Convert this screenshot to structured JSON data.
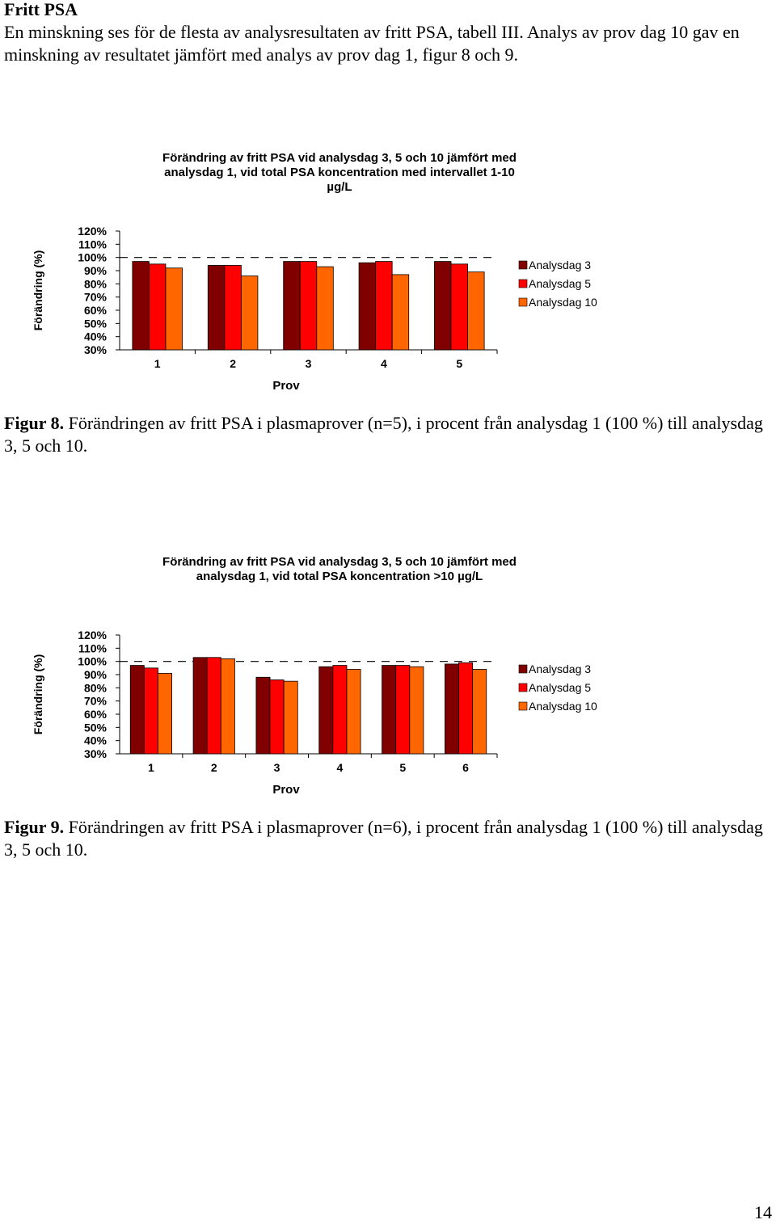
{
  "heading": "Fritt PSA",
  "paragraph": "En minskning ses för de flesta av analysresultaten av fritt PSA, tabell III. Analys av prov dag 10 gav en minskning av resultatet jämfört med analys av prov dag 1, figur 8 och 9.",
  "figure8": {
    "label": "Figur 8.",
    "caption": " Förändringen av fritt PSA i plasmaprover (n=5), i procent från analysdag 1 (100 %) till analysdag 3, 5 och 10."
  },
  "figure9": {
    "label": "Figur 9.",
    "caption": " Förändringen av fritt PSA i plasmaprover (n=6), i procent från analysdag 1 (100 %) till analysdag 3, 5 och 10."
  },
  "page_number": "14",
  "series_colors": [
    "#800000",
    "#ff0000",
    "#ff6600"
  ],
  "chart_data": [
    {
      "type": "bar",
      "title_lines": [
        "Förändring av fritt PSA vid analysdag 3, 5 och 10 jämfört med",
        "analysdag 1, vid total PSA koncentration med intervallet 1-10",
        "µg/L"
      ],
      "xlabel": "Prov",
      "ylabel": "Förändring (%)",
      "ylim": [
        30,
        120
      ],
      "yticks": [
        "120%",
        "110%",
        "100%",
        "90%",
        "80%",
        "70%",
        "60%",
        "50%",
        "40%",
        "30%"
      ],
      "reference_line": 100,
      "categories": [
        "1",
        "2",
        "3",
        "4",
        "5"
      ],
      "legend_position": "right",
      "series": [
        {
          "name": "Analysdag 3",
          "values": [
            97,
            94,
            97,
            96,
            97
          ]
        },
        {
          "name": "Analysdag 5",
          "values": [
            95,
            94,
            97,
            97,
            95
          ]
        },
        {
          "name": "Analysdag 10",
          "values": [
            92,
            86,
            93,
            87,
            89
          ]
        }
      ]
    },
    {
      "type": "bar",
      "title_lines": [
        "Förändring av fritt PSA vid analysdag 3, 5 och 10 jämfört med",
        "analysdag 1, vid total PSA koncentration >10 µg/L"
      ],
      "xlabel": "Prov",
      "ylabel": "Förändring (%)",
      "ylim": [
        30,
        120
      ],
      "yticks": [
        "120%",
        "110%",
        "100%",
        "90%",
        "80%",
        "70%",
        "60%",
        "50%",
        "40%",
        "30%"
      ],
      "reference_line": 100,
      "categories": [
        "1",
        "2",
        "3",
        "4",
        "5",
        "6"
      ],
      "legend_position": "right",
      "series": [
        {
          "name": "Analysdag 3",
          "values": [
            97,
            103,
            88,
            96,
            97,
            98
          ]
        },
        {
          "name": "Analysdag 5",
          "values": [
            95,
            103,
            86,
            97,
            97,
            99
          ]
        },
        {
          "name": "Analysdag 10",
          "values": [
            91,
            102,
            85,
            94,
            96,
            94
          ]
        }
      ]
    }
  ]
}
